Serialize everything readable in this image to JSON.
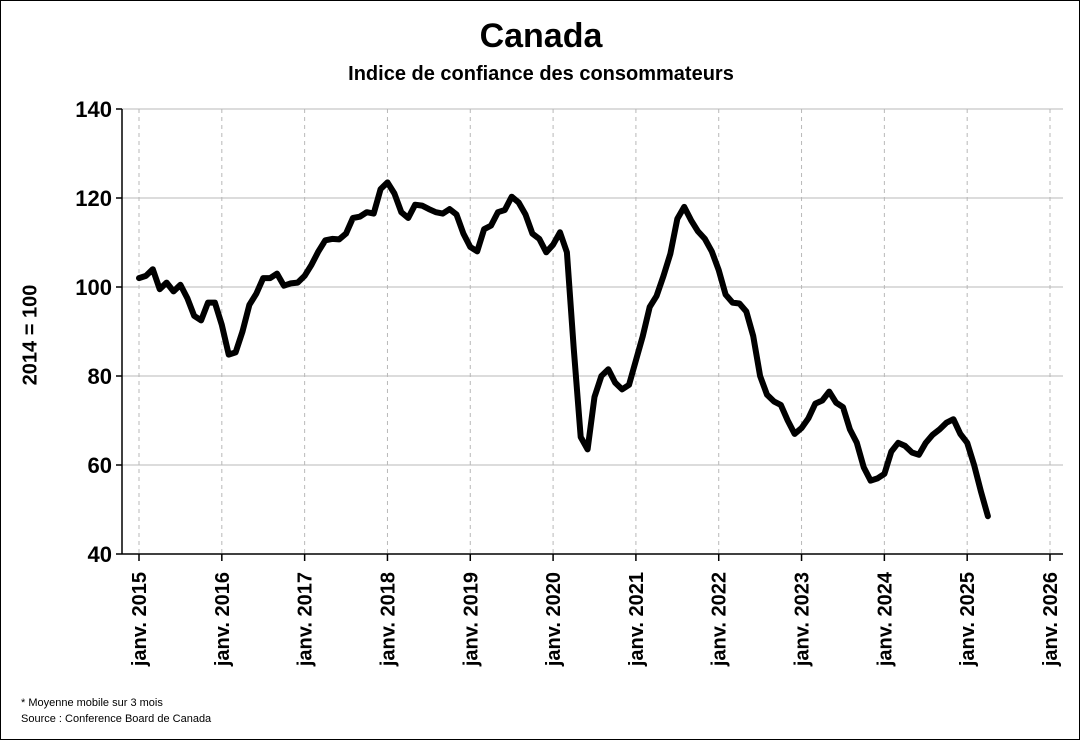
{
  "chart_data": {
    "type": "line",
    "title": "Canada",
    "subtitle": "Indice de confiance des consommateurs",
    "ylabel": "2014 = 100",
    "xlabel": "",
    "ylim": [
      40,
      140
    ],
    "yticks": [
      40,
      60,
      80,
      100,
      120,
      140
    ],
    "xlim": [
      "2015-01",
      "2026-01"
    ],
    "xticks": [
      {
        "x": "2015-01",
        "label": "janv. 2015"
      },
      {
        "x": "2016-01",
        "label": "janv. 2016"
      },
      {
        "x": "2017-01",
        "label": "janv. 2017"
      },
      {
        "x": "2018-01",
        "label": "janv. 2018"
      },
      {
        "x": "2019-01",
        "label": "janv. 2019"
      },
      {
        "x": "2020-01",
        "label": "janv. 2020"
      },
      {
        "x": "2021-01",
        "label": "janv. 2021"
      },
      {
        "x": "2022-01",
        "label": "janv. 2022"
      },
      {
        "x": "2023-01",
        "label": "janv. 2023"
      },
      {
        "x": "2024-01",
        "label": "janv. 2024"
      },
      {
        "x": "2025-01",
        "label": "janv. 2025"
      },
      {
        "x": "2026-01",
        "label": "janv. 2026"
      }
    ],
    "grid": {
      "horizontal": "solid",
      "vertical": "dashed"
    },
    "series": [
      {
        "color": "#000000",
        "points": [
          [
            "2015-01",
            102.0
          ],
          [
            "2015-02",
            102.5
          ],
          [
            "2015-03",
            104.0
          ],
          [
            "2015-04",
            99.5
          ],
          [
            "2015-05",
            101.0
          ],
          [
            "2015-06",
            99.0
          ],
          [
            "2015-07",
            100.5
          ],
          [
            "2015-08",
            97.5
          ],
          [
            "2015-09",
            93.5
          ],
          [
            "2015-10",
            92.5
          ],
          [
            "2015-11",
            96.5
          ],
          [
            "2015-12",
            96.5
          ],
          [
            "2016-01",
            91.5
          ],
          [
            "2016-02",
            84.8
          ],
          [
            "2016-03",
            85.3
          ],
          [
            "2016-04",
            90.0
          ],
          [
            "2016-05",
            96.0
          ],
          [
            "2016-06",
            98.5
          ],
          [
            "2016-07",
            102.0
          ],
          [
            "2016-08",
            102.0
          ],
          [
            "2016-09",
            103.0
          ],
          [
            "2016-10",
            100.3
          ],
          [
            "2016-11",
            100.8
          ],
          [
            "2016-12",
            101.0
          ],
          [
            "2017-01",
            102.5
          ],
          [
            "2017-02",
            105.0
          ],
          [
            "2017-03",
            108.0
          ],
          [
            "2017-04",
            110.5
          ],
          [
            "2017-05",
            110.8
          ],
          [
            "2017-06",
            110.7
          ],
          [
            "2017-07",
            112.0
          ],
          [
            "2017-08",
            115.5
          ],
          [
            "2017-09",
            115.8
          ],
          [
            "2017-10",
            116.8
          ],
          [
            "2017-11",
            116.5
          ],
          [
            "2017-12",
            122.0
          ],
          [
            "2018-01",
            123.5
          ],
          [
            "2018-02",
            121.0
          ],
          [
            "2018-03",
            116.8
          ],
          [
            "2018-04",
            115.5
          ],
          [
            "2018-05",
            118.5
          ],
          [
            "2018-06",
            118.3
          ],
          [
            "2018-07",
            117.5
          ],
          [
            "2018-08",
            116.8
          ],
          [
            "2018-09",
            116.5
          ],
          [
            "2018-10",
            117.5
          ],
          [
            "2018-11",
            116.3
          ],
          [
            "2018-12",
            112.0
          ],
          [
            "2019-01",
            109.0
          ],
          [
            "2019-02",
            108.0
          ],
          [
            "2019-03",
            113.0
          ],
          [
            "2019-04",
            113.8
          ],
          [
            "2019-05",
            116.8
          ],
          [
            "2019-06",
            117.3
          ],
          [
            "2019-07",
            120.3
          ],
          [
            "2019-08",
            119.0
          ],
          [
            "2019-09",
            116.3
          ],
          [
            "2019-10",
            112.0
          ],
          [
            "2019-11",
            110.8
          ],
          [
            "2019-12",
            107.8
          ],
          [
            "2020-01",
            109.5
          ],
          [
            "2020-02",
            112.3
          ],
          [
            "2020-03",
            107.8
          ],
          [
            "2020-04",
            86.0
          ],
          [
            "2020-05",
            66.3
          ],
          [
            "2020-06",
            63.5
          ],
          [
            "2020-07",
            75.3
          ],
          [
            "2020-08",
            80.0
          ],
          [
            "2020-09",
            81.5
          ],
          [
            "2020-10",
            78.5
          ],
          [
            "2020-11",
            77.0
          ],
          [
            "2020-12",
            78.0
          ],
          [
            "2021-01",
            83.5
          ],
          [
            "2021-02",
            89.0
          ],
          [
            "2021-03",
            95.5
          ],
          [
            "2021-04",
            98.0
          ],
          [
            "2021-05",
            102.5
          ],
          [
            "2021-06",
            107.5
          ],
          [
            "2021-07",
            115.3
          ],
          [
            "2021-08",
            118.0
          ],
          [
            "2021-09",
            115.0
          ],
          [
            "2021-10",
            112.5
          ],
          [
            "2021-11",
            110.8
          ],
          [
            "2021-12",
            108.0
          ],
          [
            "2022-01",
            103.8
          ],
          [
            "2022-02",
            98.3
          ],
          [
            "2022-03",
            96.5
          ],
          [
            "2022-04",
            96.3
          ],
          [
            "2022-05",
            94.5
          ],
          [
            "2022-06",
            89.0
          ],
          [
            "2022-07",
            80.0
          ],
          [
            "2022-08",
            75.8
          ],
          [
            "2022-09",
            74.3
          ],
          [
            "2022-10",
            73.5
          ],
          [
            "2022-11",
            70.0
          ],
          [
            "2022-12",
            67.0
          ],
          [
            "2023-01",
            68.3
          ],
          [
            "2023-02",
            70.5
          ],
          [
            "2023-03",
            73.8
          ],
          [
            "2023-04",
            74.5
          ],
          [
            "2023-05",
            76.5
          ],
          [
            "2023-06",
            74.0
          ],
          [
            "2023-07",
            73.0
          ],
          [
            "2023-08",
            68.0
          ],
          [
            "2023-09",
            65.0
          ],
          [
            "2023-10",
            59.5
          ],
          [
            "2023-11",
            56.5
          ],
          [
            "2023-12",
            57.0
          ],
          [
            "2024-01",
            58.0
          ],
          [
            "2024-02",
            63.0
          ],
          [
            "2024-03",
            65.0
          ],
          [
            "2024-04",
            64.3
          ],
          [
            "2024-05",
            62.8
          ],
          [
            "2024-06",
            62.3
          ],
          [
            "2024-07",
            65.0
          ],
          [
            "2024-08",
            66.8
          ],
          [
            "2024-09",
            68.0
          ],
          [
            "2024-10",
            69.5
          ],
          [
            "2024-11",
            70.3
          ],
          [
            "2024-12",
            67.0
          ],
          [
            "2025-01",
            65.0
          ],
          [
            "2025-02",
            60.0
          ],
          [
            "2025-03",
            54.0
          ],
          [
            "2025-04",
            48.5
          ]
        ]
      }
    ]
  },
  "footnotes": {
    "note": "* Moyenne mobile sur 3 mois",
    "source": "Source : Conference Board de Canada"
  }
}
